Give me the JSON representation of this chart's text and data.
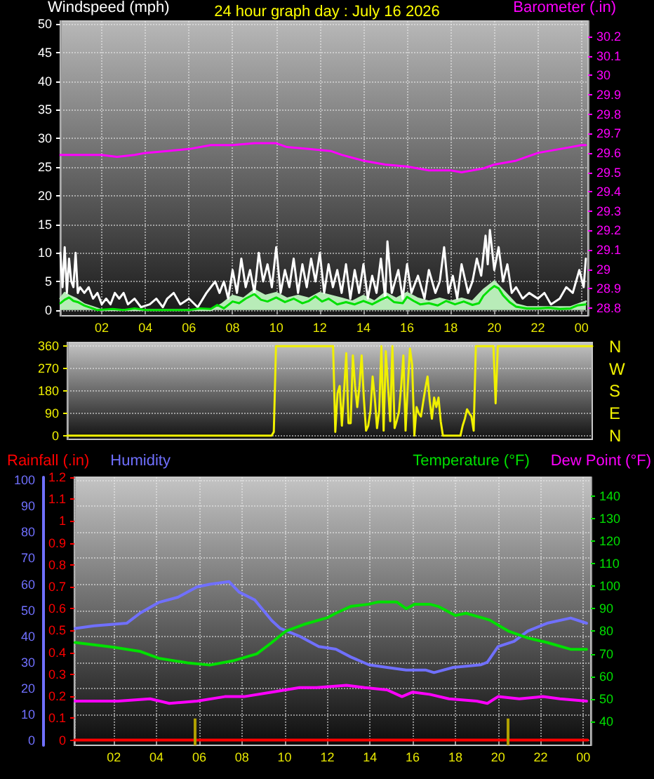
{
  "chart_data": [
    {
      "type": "line",
      "title": "24 hour graph day : July 16 2026",
      "ylabel": "Windspeed (mph)",
      "y2label": "Barometer (.in)",
      "xlim": [
        "2026-07-16T00:06",
        "2026-07-17T00:18"
      ],
      "xticks": [
        {
          "value": "2026-07-16T02:00",
          "label": "02"
        },
        {
          "value": "2026-07-16T04:00",
          "label": "04"
        },
        {
          "value": "2026-07-16T06:00",
          "label": "06"
        },
        {
          "value": "2026-07-16T08:00",
          "label": "08"
        },
        {
          "value": "2026-07-16T10:00",
          "label": "10"
        },
        {
          "value": "2026-07-16T12:00",
          "label": "12"
        },
        {
          "value": "2026-07-16T14:00",
          "label": "14"
        },
        {
          "value": "2026-07-16T16:00",
          "label": "16"
        },
        {
          "value": "2026-07-16T18:00",
          "label": "18"
        },
        {
          "value": "2026-07-16T20:00",
          "label": "20"
        },
        {
          "value": "2026-07-16T22:00",
          "label": "22"
        },
        {
          "value": "2026-07-17T00:00",
          "label": "00"
        }
      ],
      "ylim": [
        -1,
        50.5
      ],
      "yticks": [
        0,
        5,
        10,
        15,
        20,
        25,
        30,
        35,
        40,
        45,
        50
      ],
      "y2lim": [
        28.76,
        30.28
      ],
      "y2ticks": [
        28.8,
        28.9,
        29,
        29.1,
        29.2,
        29.3,
        29.4,
        29.5,
        29.6,
        29.7,
        29.8,
        29.9,
        30,
        30.1,
        30.2
      ],
      "grid": true,
      "marker": "none",
      "line_style": "solid",
      "series": [
        {
          "type": "area",
          "color": "#b8ecb8",
          "x": [
            "2026-07-16T00:06",
            "2026-07-16T00:18",
            "2026-07-16T00:30",
            "2026-07-16T00:48",
            "2026-07-16T01:12",
            "2026-07-16T01:36",
            "2026-07-16T02:00",
            "2026-07-16T07:00",
            "2026-07-16T07:30",
            "2026-07-16T08:00",
            "2026-07-16T08:30",
            "2026-07-16T09:00",
            "2026-07-16T09:30",
            "2026-07-16T10:00",
            "2026-07-16T10:30",
            "2026-07-16T11:00",
            "2026-07-16T11:30",
            "2026-07-16T12:00",
            "2026-07-16T12:30",
            "2026-07-16T13:00",
            "2026-07-16T13:30",
            "2026-07-16T14:00",
            "2026-07-16T14:30",
            "2026-07-16T15:00",
            "2026-07-16T15:30",
            "2026-07-16T16:00",
            "2026-07-16T16:30",
            "2026-07-16T17:00",
            "2026-07-16T17:30",
            "2026-07-16T18:00",
            "2026-07-16T18:30",
            "2026-07-16T19:00",
            "2026-07-16T19:30",
            "2026-07-16T20:00",
            "2026-07-16T20:30",
            "2026-07-16T21:00",
            "2026-07-16T21:30",
            "2026-07-16T22:30",
            "2026-07-16T23:30",
            "2026-07-17T00:12"
          ],
          "values": [
            2,
            3,
            2.5,
            2,
            1,
            0.5,
            0,
            0,
            1,
            2.5,
            2,
            3.5,
            2.5,
            3,
            2,
            2.5,
            2,
            3,
            2.5,
            2,
            1.5,
            2.5,
            1.5,
            3,
            2,
            3,
            2,
            1.5,
            2,
            1.5,
            2,
            1.5,
            3.5,
            5,
            3,
            1,
            0.5,
            0.5,
            0.5,
            1.5
          ]
        },
        {
          "color": "#ffffff",
          "x": [
            "2026-07-16T00:06",
            "2026-07-16T00:12",
            "2026-07-16T00:18",
            "2026-07-16T00:24",
            "2026-07-16T00:30",
            "2026-07-16T00:36",
            "2026-07-16T00:42",
            "2026-07-16T00:48",
            "2026-07-16T00:54",
            "2026-07-16T01:00",
            "2026-07-16T01:12",
            "2026-07-16T01:24",
            "2026-07-16T01:36",
            "2026-07-16T01:48",
            "2026-07-16T02:00",
            "2026-07-16T02:12",
            "2026-07-16T02:24",
            "2026-07-16T02:36",
            "2026-07-16T02:48",
            "2026-07-16T03:00",
            "2026-07-16T03:12",
            "2026-07-16T03:30",
            "2026-07-16T03:48",
            "2026-07-16T04:12",
            "2026-07-16T04:30",
            "2026-07-16T04:48",
            "2026-07-16T05:00",
            "2026-07-16T05:18",
            "2026-07-16T05:36",
            "2026-07-16T06:00",
            "2026-07-16T06:24",
            "2026-07-16T06:48",
            "2026-07-16T07:00",
            "2026-07-16T07:12",
            "2026-07-16T07:24",
            "2026-07-16T07:36",
            "2026-07-16T07:48",
            "2026-07-16T08:00",
            "2026-07-16T08:12",
            "2026-07-16T08:24",
            "2026-07-16T08:36",
            "2026-07-16T08:48",
            "2026-07-16T09:00",
            "2026-07-16T09:12",
            "2026-07-16T09:24",
            "2026-07-16T09:36",
            "2026-07-16T09:48",
            "2026-07-16T10:00",
            "2026-07-16T10:12",
            "2026-07-16T10:24",
            "2026-07-16T10:36",
            "2026-07-16T10:48",
            "2026-07-16T11:00",
            "2026-07-16T11:12",
            "2026-07-16T11:24",
            "2026-07-16T11:36",
            "2026-07-16T11:48",
            "2026-07-16T12:00",
            "2026-07-16T12:12",
            "2026-07-16T12:24",
            "2026-07-16T12:36",
            "2026-07-16T12:48",
            "2026-07-16T13:00",
            "2026-07-16T13:12",
            "2026-07-16T13:24",
            "2026-07-16T13:36",
            "2026-07-16T13:48",
            "2026-07-16T14:00",
            "2026-07-16T14:12",
            "2026-07-16T14:24",
            "2026-07-16T14:36",
            "2026-07-16T14:48",
            "2026-07-16T15:00",
            "2026-07-16T15:06",
            "2026-07-16T15:18",
            "2026-07-16T15:36",
            "2026-07-16T15:48",
            "2026-07-16T16:00",
            "2026-07-16T16:12",
            "2026-07-16T16:30",
            "2026-07-16T16:48",
            "2026-07-16T17:00",
            "2026-07-16T17:18",
            "2026-07-16T17:30",
            "2026-07-16T17:42",
            "2026-07-16T17:54",
            "2026-07-16T18:06",
            "2026-07-16T18:18",
            "2026-07-16T18:30",
            "2026-07-16T18:48",
            "2026-07-16T19:00",
            "2026-07-16T19:12",
            "2026-07-16T19:24",
            "2026-07-16T19:36",
            "2026-07-16T19:42",
            "2026-07-16T19:48",
            "2026-07-16T20:00",
            "2026-07-16T20:12",
            "2026-07-16T20:24",
            "2026-07-16T20:36",
            "2026-07-16T20:48",
            "2026-07-16T21:00",
            "2026-07-16T21:18",
            "2026-07-16T21:36",
            "2026-07-16T22:00",
            "2026-07-16T22:18",
            "2026-07-16T22:36",
            "2026-07-16T23:00",
            "2026-07-16T23:18",
            "2026-07-16T23:36",
            "2026-07-16T23:54",
            "2026-07-17T00:06",
            "2026-07-17T00:12"
          ],
          "values": [
            10,
            4,
            11,
            3,
            9,
            5,
            4,
            10,
            3,
            4,
            3,
            4,
            2,
            3,
            1,
            2,
            1,
            3,
            2,
            3,
            1,
            2,
            0.5,
            1,
            2,
            0.5,
            2,
            3,
            1,
            2,
            0.5,
            3,
            4,
            5,
            3,
            5,
            2,
            7,
            3,
            9,
            4,
            7,
            3,
            10,
            5,
            8,
            4,
            11,
            3,
            7,
            4,
            9,
            3,
            8,
            4,
            9,
            5,
            10,
            3,
            8,
            4,
            7,
            3,
            8,
            2,
            7,
            3,
            8,
            2,
            6,
            3,
            9,
            2,
            12,
            3,
            7,
            2,
            8,
            3,
            6,
            2,
            7,
            3,
            5,
            11,
            3,
            6,
            2,
            8,
            3,
            5,
            9,
            6,
            13,
            8,
            14,
            7,
            11,
            5,
            8,
            3,
            4,
            2,
            3,
            2,
            3,
            1,
            2,
            4,
            3,
            7,
            4,
            9
          ]
        },
        {
          "color": "#00e000",
          "x": [
            "2026-07-16T00:06",
            "2026-07-16T00:18",
            "2026-07-16T00:30",
            "2026-07-16T00:42",
            "2026-07-16T00:54",
            "2026-07-16T01:12",
            "2026-07-16T01:30",
            "2026-07-16T01:48",
            "2026-07-16T02:30",
            "2026-07-16T03:00",
            "2026-07-16T03:30",
            "2026-07-16T04:00",
            "2026-07-16T05:00",
            "2026-07-16T06:00",
            "2026-07-16T06:30",
            "2026-07-16T07:00",
            "2026-07-16T07:18",
            "2026-07-16T07:36",
            "2026-07-16T08:00",
            "2026-07-16T08:18",
            "2026-07-16T08:36",
            "2026-07-16T09:00",
            "2026-07-16T09:18",
            "2026-07-16T09:36",
            "2026-07-16T10:00",
            "2026-07-16T10:24",
            "2026-07-16T10:48",
            "2026-07-16T11:12",
            "2026-07-16T11:30",
            "2026-07-16T11:48",
            "2026-07-16T12:06",
            "2026-07-16T12:24",
            "2026-07-16T12:48",
            "2026-07-16T13:12",
            "2026-07-16T13:36",
            "2026-07-16T14:00",
            "2026-07-16T14:24",
            "2026-07-16T14:48",
            "2026-07-16T15:06",
            "2026-07-16T15:24",
            "2026-07-16T15:48",
            "2026-07-16T16:00",
            "2026-07-16T16:18",
            "2026-07-16T16:36",
            "2026-07-16T17:00",
            "2026-07-16T17:24",
            "2026-07-16T17:48",
            "2026-07-16T18:12",
            "2026-07-16T18:36",
            "2026-07-16T19:00",
            "2026-07-16T19:18",
            "2026-07-16T19:30",
            "2026-07-16T19:48",
            "2026-07-16T20:00",
            "2026-07-16T20:12",
            "2026-07-16T20:24",
            "2026-07-16T20:42",
            "2026-07-16T21:00",
            "2026-07-16T21:30",
            "2026-07-16T22:00",
            "2026-07-16T22:30",
            "2026-07-16T23:00",
            "2026-07-16T23:30",
            "2026-07-16T23:48",
            "2026-07-17T00:12"
          ],
          "values": [
            1.2,
            1.8,
            2.2,
            1.6,
            1.4,
            0.8,
            0.4,
            0,
            0.2,
            0,
            0.3,
            0,
            0,
            0,
            0.3,
            0.2,
            0.9,
            0.3,
            1.5,
            1.2,
            2.0,
            2.8,
            1.8,
            1.5,
            2.2,
            1.4,
            2.0,
            1.2,
            1.6,
            2.4,
            1.5,
            2.0,
            1.0,
            1.4,
            1.0,
            1.6,
            1.0,
            1.8,
            2.3,
            1.4,
            1.2,
            2.3,
            1.6,
            1.0,
            1.2,
            0.8,
            1.6,
            1.0,
            1.5,
            0.9,
            1.2,
            2.5,
            3.6,
            4.2,
            3.8,
            2.6,
            1.4,
            0.6,
            0.3,
            0.3,
            0.4,
            0.2,
            0.3,
            0.8,
            1.0
          ]
        },
        {
          "color": "#ff00ff",
          "axis": "y2",
          "x": [
            "2026-07-16T00:06",
            "2026-07-16T01:00",
            "2026-07-16T02:00",
            "2026-07-16T02:42",
            "2026-07-16T03:30",
            "2026-07-16T04:00",
            "2026-07-16T05:00",
            "2026-07-16T06:00",
            "2026-07-16T07:00",
            "2026-07-16T08:00",
            "2026-07-16T09:00",
            "2026-07-16T10:00",
            "2026-07-16T10:30",
            "2026-07-16T11:30",
            "2026-07-16T12:30",
            "2026-07-16T13:00",
            "2026-07-16T14:00",
            "2026-07-16T15:00",
            "2026-07-16T16:00",
            "2026-07-16T17:00",
            "2026-07-16T18:00",
            "2026-07-16T18:30",
            "2026-07-16T19:00",
            "2026-07-16T19:30",
            "2026-07-16T20:00",
            "2026-07-16T21:00",
            "2026-07-16T21:30",
            "2026-07-16T22:00",
            "2026-07-16T23:00",
            "2026-07-16T23:30",
            "2026-07-17T00:00",
            "2026-07-17T00:12"
          ],
          "values": [
            29.59,
            29.59,
            29.59,
            29.58,
            29.59,
            29.6,
            29.61,
            29.62,
            29.64,
            29.64,
            29.65,
            29.65,
            29.63,
            29.62,
            29.61,
            29.59,
            29.56,
            29.54,
            29.53,
            29.51,
            29.51,
            29.5,
            29.51,
            29.52,
            29.54,
            29.56,
            29.58,
            29.6,
            29.62,
            29.63,
            29.64,
            29.64
          ]
        }
      ]
    },
    {
      "type": "line",
      "categories": [
        null,
        null,
        null,
        null,
        null,
        null,
        null,
        null,
        null,
        null,
        null,
        null,
        null,
        null,
        null,
        null,
        null,
        null,
        null,
        null,
        null,
        null,
        null,
        null,
        null,
        null,
        null,
        null,
        null,
        null,
        null,
        null,
        null,
        null,
        null,
        null,
        null,
        null,
        null,
        null,
        null,
        null,
        null,
        null,
        null,
        null,
        null,
        null,
        null,
        null,
        null,
        null,
        null,
        null,
        null,
        null,
        null,
        null,
        null,
        null,
        null,
        null,
        null,
        null,
        null,
        null,
        null,
        null,
        null,
        null,
        null,
        null,
        null,
        null,
        null,
        null,
        null,
        null,
        null,
        null,
        null,
        null,
        null,
        null,
        null,
        null,
        null,
        null,
        null,
        null,
        null,
        null,
        null,
        null,
        null,
        null,
        null,
        null,
        null,
        null,
        null,
        null,
        null,
        null,
        null,
        null,
        null,
        null,
        null,
        null,
        null,
        null,
        null,
        null,
        null,
        null,
        null,
        null,
        null,
        null,
        null,
        null,
        null,
        null,
        null,
        null,
        null,
        null,
        null,
        null,
        null,
        null,
        null,
        null,
        null,
        null,
        null,
        null,
        null,
        null,
        null,
        null,
        null,
        null,
        null,
        null,
        null,
        null,
        null,
        null,
        null,
        null,
        null,
        null,
        null,
        null,
        null,
        null,
        null,
        null,
        null,
        null,
        null,
        null,
        null,
        null,
        null,
        null,
        null,
        null,
        null,
        null,
        null,
        null,
        null,
        null,
        null,
        null,
        null,
        null,
        null,
        null,
        null,
        null,
        null,
        null,
        null,
        null,
        null,
        null,
        null,
        null,
        null,
        null,
        null,
        null,
        null,
        null,
        null,
        null,
        null,
        null,
        null,
        null,
        null,
        null,
        null,
        null,
        null,
        null,
        null,
        null,
        null,
        null,
        null,
        null,
        null,
        null,
        null,
        null,
        null,
        null,
        null,
        null,
        null,
        null,
        null,
        null,
        null,
        null,
        null,
        null,
        null,
        null,
        null,
        null,
        null,
        null,
        null,
        null
      ],
      "ylim": [
        -15,
        375
      ],
      "yticks": [
        0,
        90,
        180,
        270,
        360
      ],
      "y2_categories": [
        "N",
        "W",
        "S",
        "E",
        "N"
      ],
      "tick_labels": "y",
      "grid": "y",
      "marker": "none",
      "line_style": "solid",
      "series": [
        {
          "color": "#f0f000",
          "values": [
            0,
            0,
            0,
            0,
            0,
            0,
            0,
            0,
            0,
            0,
            0,
            0,
            0,
            0,
            0,
            0,
            0,
            0,
            0,
            0,
            0,
            0,
            0,
            0,
            0,
            0,
            0,
            0,
            0,
            0,
            0,
            0,
            0,
            0,
            0,
            0,
            0,
            0,
            0,
            0,
            0,
            0,
            0,
            0,
            0,
            0,
            0,
            0,
            0,
            0,
            0,
            0,
            0,
            0,
            0,
            0,
            0,
            0,
            0,
            0,
            0,
            0,
            0,
            0,
            0,
            0,
            0,
            0,
            0,
            0,
            0,
            0,
            0,
            0,
            0,
            0,
            0,
            0,
            0,
            0,
            0,
            0,
            0,
            0,
            0,
            0,
            0,
            0,
            0,
            0,
            0,
            0,
            0,
            0,
            15,
            360,
            360,
            360,
            360,
            360,
            360,
            360,
            360,
            360,
            360,
            360,
            360,
            360,
            360,
            360,
            360,
            360,
            360,
            360,
            360,
            360,
            360,
            360,
            360,
            360,
            360,
            360,
            15,
            170,
            200,
            40,
            180,
            332,
            50,
            50,
            323,
            200,
            115,
            200,
            323,
            150,
            20,
            40,
            100,
            238,
            150,
            30,
            100,
            360,
            20,
            340,
            200,
            58,
            360,
            30,
            60,
            96,
            200,
            323,
            20,
            200,
            350,
            285,
            0,
            115,
            90,
            77,
            134,
            190,
            238,
            140,
            68,
            153,
            115,
            153,
            58,
            0,
            0,
            0,
            0,
            0,
            0,
            0,
            0,
            0,
            40,
            68,
            106,
            90,
            77,
            20,
            360,
            360,
            360,
            360,
            360,
            360,
            360,
            360,
            360,
            130,
            360,
            360,
            360,
            360,
            360,
            360,
            360,
            360,
            360,
            360,
            360,
            360,
            360,
            360,
            360,
            360,
            360,
            360,
            360,
            360,
            360,
            360,
            360,
            360,
            360,
            360,
            360,
            360,
            360,
            360,
            360,
            360,
            360,
            360,
            360,
            360,
            360,
            360,
            360,
            360,
            360,
            360,
            360,
            360
          ]
        }
      ]
    },
    {
      "type": "line",
      "xlim": [
        "2026-07-16T00:09",
        "2026-07-17T00:21"
      ],
      "xticks": [
        {
          "value": "2026-07-16T02:00",
          "label": "02"
        },
        {
          "value": "2026-07-16T04:00",
          "label": "04"
        },
        {
          "value": "2026-07-16T06:00",
          "label": "06"
        },
        {
          "value": "2026-07-16T08:00",
          "label": "08"
        },
        {
          "value": "2026-07-16T10:00",
          "label": "10"
        },
        {
          "value": "2026-07-16T12:00",
          "label": "12"
        },
        {
          "value": "2026-07-16T14:00",
          "label": "14"
        },
        {
          "value": "2026-07-16T16:00",
          "label": "16"
        },
        {
          "value": "2026-07-16T18:00",
          "label": "18"
        },
        {
          "value": "2026-07-16T20:00",
          "label": "20"
        },
        {
          "value": "2026-07-16T22:00",
          "label": "22"
        },
        {
          "value": "2026-07-17T00:00",
          "label": "00"
        }
      ],
      "ylim": [
        -2,
        101.2
      ],
      "yticks": [
        0,
        10,
        20,
        30,
        40,
        50,
        60,
        70,
        80,
        90,
        100
      ],
      "y2lim": [
        29.4,
        148.3
      ],
      "y2ticks": [
        40,
        50,
        60,
        70,
        80,
        90,
        100,
        110,
        120,
        130,
        140
      ],
      "y3lim": [
        -0.024,
        1.2
      ],
      "y3ticks": [
        0,
        0.1,
        0.2,
        0.3,
        0.4,
        0.5,
        0.6,
        0.7,
        0.8,
        0.9,
        1,
        1.1,
        1.2
      ],
      "grid": true,
      "legend": "top",
      "marker": "none",
      "line_style": "solid",
      "ref_lines": [
        {
          "axis": "x",
          "value": "2026-07-16T05:48",
          "color": "#b0a000"
        },
        {
          "axis": "x",
          "value": "2026-07-16T20:27",
          "color": "#b0a000"
        }
      ],
      "series": [
        {
          "name": "Rainfall (.in)",
          "color": "#ff0000",
          "axis": "y3",
          "x": [
            "2026-07-16T00:09",
            "2026-07-17T00:12"
          ],
          "values": [
            0,
            0
          ]
        },
        {
          "name": "Humidity",
          "color": "#7070ff",
          "x": [
            "2026-07-16T00:11",
            "2026-07-16T01:04",
            "2026-07-16T02:36",
            "2026-07-16T03:15",
            "2026-07-16T04:06",
            "2026-07-16T05:00",
            "2026-07-16T05:54",
            "2026-07-16T06:30",
            "2026-07-16T07:24",
            "2026-07-16T07:52",
            "2026-07-16T08:36",
            "2026-07-16T09:24",
            "2026-07-16T09:48",
            "2026-07-16T10:42",
            "2026-07-16T11:36",
            "2026-07-16T12:24",
            "2026-07-16T13:06",
            "2026-07-16T13:57",
            "2026-07-16T14:48",
            "2026-07-16T15:42",
            "2026-07-16T16:36",
            "2026-07-16T17:00",
            "2026-07-16T17:54",
            "2026-07-16T19:12",
            "2026-07-16T19:30",
            "2026-07-16T20:00",
            "2026-07-16T20:45",
            "2026-07-16T21:24",
            "2026-07-16T22:18",
            "2026-07-16T23:24",
            "2026-07-17T00:09"
          ],
          "values": [
            43,
            44,
            45,
            49,
            53,
            55,
            59,
            60,
            61,
            57,
            54,
            46,
            43,
            40,
            36,
            35,
            32,
            29,
            28,
            27,
            27,
            26,
            28,
            29,
            30,
            36,
            38,
            42,
            45,
            47,
            45
          ]
        },
        {
          "name": "Temperature (°F)",
          "color": "#00e000",
          "axis": "y2",
          "x": [
            "2026-07-16T00:11",
            "2026-07-16T01:56",
            "2026-07-16T03:15",
            "2026-07-16T04:06",
            "2026-07-16T05:27",
            "2026-07-16T06:30",
            "2026-07-16T07:38",
            "2026-07-16T08:42",
            "2026-07-16T09:24",
            "2026-07-16T10:03",
            "2026-07-16T10:54",
            "2026-07-16T12:00",
            "2026-07-16T12:24",
            "2026-07-16T13:06",
            "2026-07-16T13:57",
            "2026-07-16T14:24",
            "2026-07-16T15:15",
            "2026-07-16T15:42",
            "2026-07-16T16:06",
            "2026-07-16T16:48",
            "2026-07-16T17:12",
            "2026-07-16T18:00",
            "2026-07-16T18:30",
            "2026-07-16T19:36",
            "2026-07-16T20:30",
            "2026-07-16T21:24",
            "2026-07-16T22:18",
            "2026-07-16T23:24",
            "2026-07-17T00:09"
          ],
          "values": [
            75,
            73,
            71,
            68,
            66,
            65,
            67,
            70,
            75,
            80,
            83,
            86,
            88,
            91,
            92,
            93,
            93,
            90,
            92,
            92,
            91,
            87,
            88,
            85,
            80,
            77,
            75,
            72,
            72
          ]
        },
        {
          "name": "Dew Point (°F)",
          "color": "#ff00ff",
          "axis": "y2",
          "x": [
            "2026-07-16T00:11",
            "2026-07-16T02:12",
            "2026-07-16T03:42",
            "2026-07-16T04:36",
            "2026-07-16T05:54",
            "2026-07-16T07:12",
            "2026-07-16T08:06",
            "2026-07-16T09:24",
            "2026-07-16T10:42",
            "2026-07-16T11:30",
            "2026-07-16T12:54",
            "2026-07-16T13:45",
            "2026-07-16T14:48",
            "2026-07-16T15:30",
            "2026-07-16T16:00",
            "2026-07-16T16:48",
            "2026-07-16T17:42",
            "2026-07-16T19:00",
            "2026-07-16T19:30",
            "2026-07-16T20:00",
            "2026-07-16T21:00",
            "2026-07-16T22:06",
            "2026-07-16T22:54",
            "2026-07-17T00:09"
          ],
          "values": [
            49,
            49,
            50,
            48,
            49,
            51,
            51,
            53,
            55,
            55,
            56,
            55,
            54,
            51,
            53,
            52,
            50,
            49,
            48,
            51,
            50,
            51,
            50,
            49
          ]
        }
      ]
    }
  ]
}
